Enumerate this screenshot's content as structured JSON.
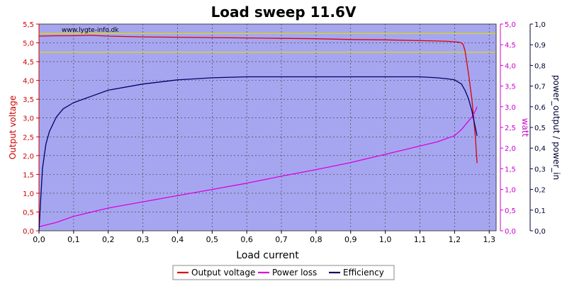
{
  "chart_data": {
    "type": "line",
    "title": "Load sweep 11.6V",
    "watermark": "www.lygte-info.dk",
    "xlabel": "Load current",
    "xlim": [
      0,
      1.32
    ],
    "xticks": [
      "0,0",
      "0,1",
      "0,2",
      "0,3",
      "0,4",
      "0,5",
      "0,6",
      "0,7",
      "0,8",
      "0,9",
      "1,0",
      "1,1",
      "1,2",
      "1,3"
    ],
    "axes": {
      "left": {
        "label": "Output voltage",
        "color": "#cc0000",
        "range": [
          0,
          5.5
        ],
        "ticks": [
          "0,0",
          "0,5",
          "1,0",
          "1,5",
          "2,0",
          "2,5",
          "3,0",
          "3,5",
          "4,0",
          "4,5",
          "5,0",
          "5,5"
        ]
      },
      "right_watt": {
        "label": "watt",
        "color": "#cc00cc",
        "range": [
          0,
          5.0
        ],
        "ticks": [
          "0,0",
          "0,5",
          "1,0",
          "1,5",
          "2,0",
          "2,5",
          "3,0",
          "3,5",
          "4,0",
          "4,5",
          "5,0"
        ]
      },
      "right_eff": {
        "label": "power_output / power_in",
        "color": "#000033",
        "range": [
          0,
          1.0
        ],
        "ticks": [
          "0,0",
          "0,1",
          "0,2",
          "0,3",
          "0,4",
          "0,5",
          "0,6",
          "0,7",
          "0,8",
          "0,9",
          "1,0"
        ]
      }
    },
    "reference_lines_voltage": [
      5.25,
      4.75
    ],
    "reference_line_color": "#dddd00",
    "plot_background": "#a6a6f0",
    "grid": true,
    "legend_placement": "bottom-center",
    "series": [
      {
        "name": "Output voltage",
        "axis": "left",
        "color": "#dd0000",
        "x": [
          0,
          0.05,
          0.1,
          0.15,
          0.2,
          0.3,
          0.4,
          0.5,
          0.6,
          0.7,
          0.8,
          0.9,
          1.0,
          1.1,
          1.15,
          1.18,
          1.2,
          1.21,
          1.22,
          1.225,
          1.23,
          1.24,
          1.25,
          1.26,
          1.265
        ],
        "y": [
          5.18,
          5.19,
          5.19,
          5.2,
          5.18,
          5.16,
          5.15,
          5.14,
          5.13,
          5.12,
          5.11,
          5.09,
          5.08,
          5.06,
          5.05,
          5.04,
          5.03,
          5.02,
          5.0,
          4.95,
          4.8,
          4.2,
          3.5,
          2.5,
          1.8
        ]
      },
      {
        "name": "Power loss",
        "axis": "right_watt",
        "color": "#dd00dd",
        "x": [
          0,
          0.05,
          0.1,
          0.2,
          0.3,
          0.4,
          0.5,
          0.6,
          0.7,
          0.8,
          0.9,
          1.0,
          1.1,
          1.15,
          1.2,
          1.22,
          1.23,
          1.24,
          1.25,
          1.26,
          1.265
        ],
        "y": [
          0.1,
          0.2,
          0.35,
          0.55,
          0.7,
          0.85,
          1.0,
          1.15,
          1.32,
          1.48,
          1.65,
          1.85,
          2.05,
          2.15,
          2.3,
          2.45,
          2.55,
          2.65,
          2.75,
          2.9,
          3.0
        ]
      },
      {
        "name": "Efficiency",
        "axis": "right_eff",
        "color": "#000066",
        "x": [
          0,
          0.005,
          0.01,
          0.02,
          0.03,
          0.05,
          0.07,
          0.1,
          0.15,
          0.2,
          0.3,
          0.4,
          0.5,
          0.6,
          0.7,
          0.8,
          0.9,
          1.0,
          1.1,
          1.15,
          1.18,
          1.2,
          1.21,
          1.22,
          1.23,
          1.24,
          1.25,
          1.265
        ],
        "y": [
          0.0,
          0.15,
          0.3,
          0.42,
          0.48,
          0.55,
          0.59,
          0.62,
          0.65,
          0.68,
          0.71,
          0.73,
          0.74,
          0.745,
          0.745,
          0.745,
          0.745,
          0.745,
          0.745,
          0.74,
          0.735,
          0.73,
          0.72,
          0.71,
          0.68,
          0.64,
          0.58,
          0.46
        ]
      }
    ]
  }
}
